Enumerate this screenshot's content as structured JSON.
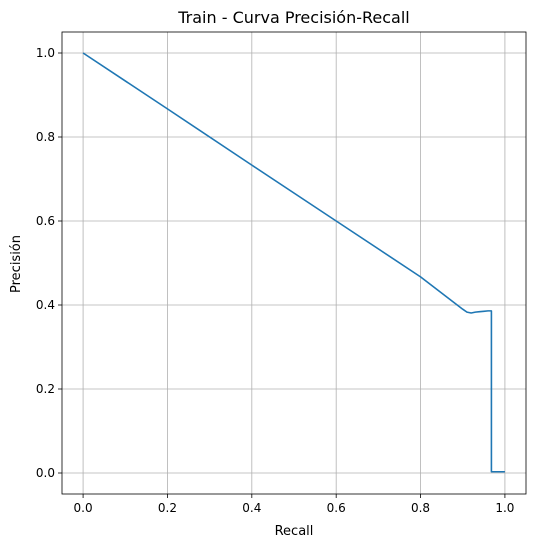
{
  "chart_data": {
    "type": "line",
    "title": "Train - Curva Precisión-Recall",
    "xlabel": "Recall",
    "ylabel": "Precisión",
    "xlim": [
      -0.05,
      1.05
    ],
    "ylim": [
      -0.05,
      1.05
    ],
    "xticks": [
      0.0,
      0.2,
      0.4,
      0.6,
      0.8,
      1.0
    ],
    "yticks": [
      0.0,
      0.2,
      0.4,
      0.6,
      0.8,
      1.0
    ],
    "xtick_labels": [
      "0.0",
      "0.2",
      "0.4",
      "0.6",
      "0.8",
      "1.0"
    ],
    "ytick_labels": [
      "0.0",
      "0.2",
      "0.4",
      "0.6",
      "0.8",
      "1.0"
    ],
    "grid": true,
    "series": [
      {
        "color": "#1f77b4",
        "x": [
          0.0,
          0.2,
          0.4,
          0.6,
          0.8,
          0.9,
          0.91,
          0.92,
          0.93,
          0.94,
          0.95,
          0.96,
          0.968,
          0.968,
          0.97,
          1.0
        ],
        "y": [
          1.0,
          0.867,
          0.733,
          0.6,
          0.467,
          0.39,
          0.383,
          0.381,
          0.383,
          0.384,
          0.385,
          0.386,
          0.386,
          0.003,
          0.003,
          0.003
        ]
      }
    ]
  }
}
